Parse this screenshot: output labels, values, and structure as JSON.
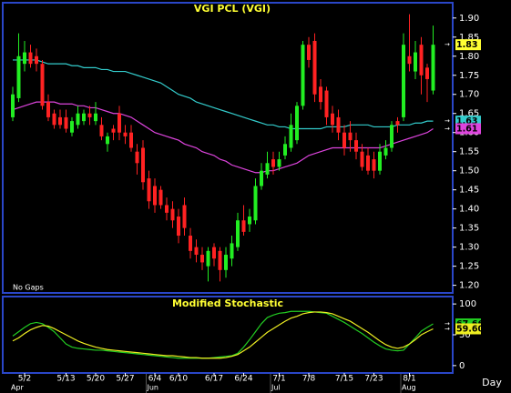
{
  "chart_data": [
    {
      "type": "candlestick",
      "title": "VGI PCL (VGI)",
      "annotation": "No Gaps",
      "categories": [
        null,
        null,
        "5/2",
        null,
        null,
        null,
        null,
        null,
        null,
        "5/13",
        null,
        null,
        null,
        null,
        "5/20",
        null,
        null,
        null,
        null,
        "5/27",
        null,
        null,
        null,
        null,
        "6/4",
        null,
        null,
        null,
        "6/10",
        null,
        null,
        null,
        null,
        null,
        "6/17",
        null,
        null,
        null,
        null,
        "6/24",
        null,
        null,
        null,
        null,
        null,
        "7/1",
        null,
        null,
        null,
        null,
        "7/8",
        null,
        null,
        null,
        null,
        null,
        "7/15",
        null,
        null,
        null,
        null,
        "7/23",
        null,
        null,
        null,
        null,
        null,
        "8/1",
        null,
        null,
        null,
        null
      ],
      "months": [
        "Apr",
        null,
        null,
        null,
        null,
        null,
        null,
        null,
        null,
        null,
        null,
        null,
        null,
        null,
        null,
        null,
        null,
        null,
        null,
        null,
        null,
        null,
        null,
        "Jun",
        null,
        null,
        null,
        null,
        null,
        null,
        null,
        null,
        null,
        null,
        null,
        null,
        null,
        null,
        null,
        null,
        null,
        null,
        null,
        null,
        "Jul",
        null,
        null,
        null,
        null,
        null,
        null,
        null,
        null,
        null,
        null,
        null,
        null,
        null,
        null,
        null,
        null,
        null,
        null,
        null,
        null,
        null,
        "Aug",
        null,
        null,
        null,
        null,
        null
      ],
      "open": [
        1.64,
        1.69,
        1.78,
        1.81,
        1.8,
        1.78,
        1.68,
        1.65,
        1.64,
        1.64,
        1.6,
        1.62,
        1.63,
        1.65,
        1.63,
        1.62,
        1.57,
        1.61,
        1.65,
        1.6,
        1.6,
        1.55,
        1.56,
        1.48,
        1.46,
        1.45,
        1.41,
        1.4,
        1.38,
        1.41,
        1.33,
        1.3,
        1.28,
        1.25,
        1.3,
        1.29,
        1.24,
        1.27,
        1.3,
        1.37,
        1.36,
        1.37,
        1.46,
        1.49,
        1.53,
        1.51,
        1.54,
        1.56,
        1.58,
        1.67,
        1.83,
        1.84,
        1.72,
        1.71,
        1.65,
        1.64,
        1.6,
        1.6,
        1.58,
        1.55,
        1.54,
        1.53,
        1.5,
        1.54,
        1.56,
        1.63,
        1.64,
        1.8,
        1.76,
        1.83,
        1.77,
        1.71
      ],
      "high": [
        1.72,
        1.86,
        1.84,
        1.83,
        1.82,
        1.79,
        1.7,
        1.66,
        1.66,
        1.66,
        1.64,
        1.67,
        1.66,
        1.67,
        1.68,
        1.64,
        1.6,
        1.62,
        1.67,
        1.62,
        1.62,
        1.57,
        1.58,
        1.5,
        1.48,
        1.46,
        1.43,
        1.42,
        1.4,
        1.43,
        1.35,
        1.32,
        1.3,
        1.3,
        1.31,
        1.3,
        1.3,
        1.33,
        1.39,
        1.41,
        1.4,
        1.48,
        1.52,
        1.55,
        1.55,
        1.55,
        1.59,
        1.65,
        1.68,
        1.84,
        1.85,
        1.86,
        1.74,
        1.72,
        1.67,
        1.66,
        1.62,
        1.63,
        1.6,
        1.57,
        1.56,
        1.55,
        1.57,
        1.58,
        1.63,
        1.64,
        1.86,
        1.91,
        1.84,
        1.85,
        1.78,
        1.88
      ],
      "low": [
        1.63,
        1.68,
        1.76,
        1.77,
        1.76,
        1.66,
        1.63,
        1.61,
        1.61,
        1.6,
        1.59,
        1.61,
        1.62,
        1.62,
        1.62,
        1.58,
        1.55,
        1.58,
        1.58,
        1.57,
        1.55,
        1.49,
        1.45,
        1.4,
        1.39,
        1.4,
        1.37,
        1.35,
        1.31,
        1.33,
        1.27,
        1.26,
        1.24,
        1.21,
        1.25,
        1.21,
        1.22,
        1.25,
        1.29,
        1.33,
        1.34,
        1.36,
        1.45,
        1.48,
        1.49,
        1.5,
        1.53,
        1.55,
        1.57,
        1.66,
        1.77,
        1.68,
        1.66,
        1.62,
        1.6,
        1.58,
        1.54,
        1.55,
        1.53,
        1.5,
        1.49,
        1.48,
        1.49,
        1.53,
        1.55,
        1.6,
        1.63,
        1.76,
        1.74,
        1.7,
        1.68,
        1.7
      ],
      "close": [
        1.7,
        1.8,
        1.81,
        1.78,
        1.78,
        1.67,
        1.64,
        1.62,
        1.62,
        1.61,
        1.63,
        1.65,
        1.65,
        1.64,
        1.65,
        1.59,
        1.59,
        1.6,
        1.6,
        1.59,
        1.56,
        1.52,
        1.47,
        1.42,
        1.41,
        1.41,
        1.39,
        1.37,
        1.33,
        1.35,
        1.29,
        1.28,
        1.26,
        1.29,
        1.27,
        1.24,
        1.28,
        1.31,
        1.37,
        1.34,
        1.38,
        1.46,
        1.5,
        1.52,
        1.51,
        1.53,
        1.57,
        1.62,
        1.67,
        1.83,
        1.79,
        1.7,
        1.68,
        1.64,
        1.62,
        1.6,
        1.56,
        1.58,
        1.55,
        1.51,
        1.5,
        1.5,
        1.55,
        1.56,
        1.62,
        1.62,
        1.83,
        1.78,
        1.81,
        1.75,
        1.74,
        1.83
      ],
      "up_color": "#22ee22",
      "down_color": "#ff2222",
      "last_label": "1.83",
      "last_color": "#ffff33",
      "lines": [
        {
          "color": "#33cccc",
          "last_label": "1.63",
          "values": [
            1.79,
            1.79,
            1.79,
            1.79,
            1.79,
            1.785,
            1.78,
            1.78,
            1.78,
            1.78,
            1.775,
            1.775,
            1.77,
            1.77,
            1.77,
            1.765,
            1.765,
            1.76,
            1.76,
            1.76,
            1.755,
            1.75,
            1.745,
            1.74,
            1.735,
            1.73,
            1.72,
            1.71,
            1.7,
            1.695,
            1.69,
            1.68,
            1.675,
            1.67,
            1.665,
            1.66,
            1.655,
            1.65,
            1.645,
            1.64,
            1.635,
            1.63,
            1.625,
            1.62,
            1.62,
            1.615,
            1.615,
            1.61,
            1.61,
            1.61,
            1.61,
            1.61,
            1.61,
            1.615,
            1.615,
            1.615,
            1.615,
            1.62,
            1.62,
            1.62,
            1.62,
            1.615,
            1.615,
            1.615,
            1.615,
            1.62,
            1.62,
            1.62,
            1.625,
            1.625,
            1.63,
            1.63
          ]
        },
        {
          "color": "#dd44dd",
          "last_label": "1.61",
          "values": [
            1.66,
            1.665,
            1.67,
            1.675,
            1.68,
            1.68,
            1.68,
            1.68,
            1.675,
            1.675,
            1.675,
            1.67,
            1.67,
            1.665,
            1.665,
            1.66,
            1.655,
            1.65,
            1.65,
            1.645,
            1.64,
            1.63,
            1.62,
            1.61,
            1.6,
            1.595,
            1.59,
            1.585,
            1.58,
            1.57,
            1.565,
            1.56,
            1.55,
            1.545,
            1.54,
            1.53,
            1.525,
            1.515,
            1.51,
            1.505,
            1.5,
            1.495,
            1.495,
            1.5,
            1.5,
            1.505,
            1.51,
            1.515,
            1.52,
            1.53,
            1.54,
            1.545,
            1.55,
            1.555,
            1.56,
            1.56,
            1.56,
            1.56,
            1.56,
            1.56,
            1.56,
            1.56,
            1.56,
            1.565,
            1.57,
            1.575,
            1.58,
            1.585,
            1.59,
            1.595,
            1.6,
            1.61
          ]
        }
      ],
      "ylim": [
        1.18,
        1.94
      ],
      "yticks": [
        {
          "value": 1.2,
          "label": "1.20"
        },
        1.25,
        {
          "value": 1.3,
          "label": "1.30"
        },
        1.35,
        {
          "value": 1.4,
          "label": "1.40"
        },
        1.45,
        {
          "value": 1.5,
          "label": "1.50"
        },
        1.55,
        {
          "value": 1.6,
          "label": "1.60"
        },
        1.65,
        {
          "value": 1.7,
          "label": "1.70"
        },
        1.75,
        {
          "value": 1.8,
          "label": "1.80"
        },
        1.85,
        {
          "value": 1.9,
          "label": "1.90"
        }
      ]
    },
    {
      "type": "line",
      "title": "Modified Stochastic",
      "xlabel": "Day",
      "series": [
        {
          "color": "#22cc22",
          "last_label": "67.66",
          "values": [
            48,
            55,
            62,
            68,
            70,
            68,
            62,
            55,
            45,
            35,
            30,
            28,
            27,
            26,
            25,
            25,
            24,
            23,
            22,
            21,
            20,
            19,
            18,
            17,
            16,
            15,
            14,
            13,
            12,
            12,
            12,
            12,
            12,
            12,
            13,
            14,
            15,
            16,
            20,
            30,
            42,
            55,
            68,
            78,
            82,
            85,
            86,
            88,
            88,
            88,
            88,
            87,
            86,
            85,
            80,
            75,
            70,
            64,
            58,
            52,
            45,
            38,
            32,
            27,
            25,
            24,
            25,
            35,
            45,
            56,
            62,
            67.66
          ]
        },
        {
          "color": "#eeee22",
          "last_label": "59.60",
          "values": [
            40,
            45,
            52,
            58,
            62,
            65,
            64,
            60,
            55,
            50,
            45,
            40,
            36,
            33,
            30,
            28,
            26,
            25,
            24,
            23,
            22,
            21,
            20,
            19,
            18,
            17,
            16,
            16,
            15,
            14,
            13,
            13,
            12,
            12,
            12,
            12,
            13,
            15,
            18,
            24,
            30,
            38,
            46,
            54,
            60,
            66,
            72,
            77,
            80,
            84,
            86,
            87,
            87,
            86,
            84,
            80,
            76,
            72,
            66,
            60,
            54,
            47,
            40,
            34,
            30,
            28,
            30,
            35,
            42,
            50,
            55,
            59.6
          ]
        }
      ],
      "ylim": [
        -12,
        112
      ],
      "yticks": [
        0,
        50,
        100
      ]
    }
  ]
}
